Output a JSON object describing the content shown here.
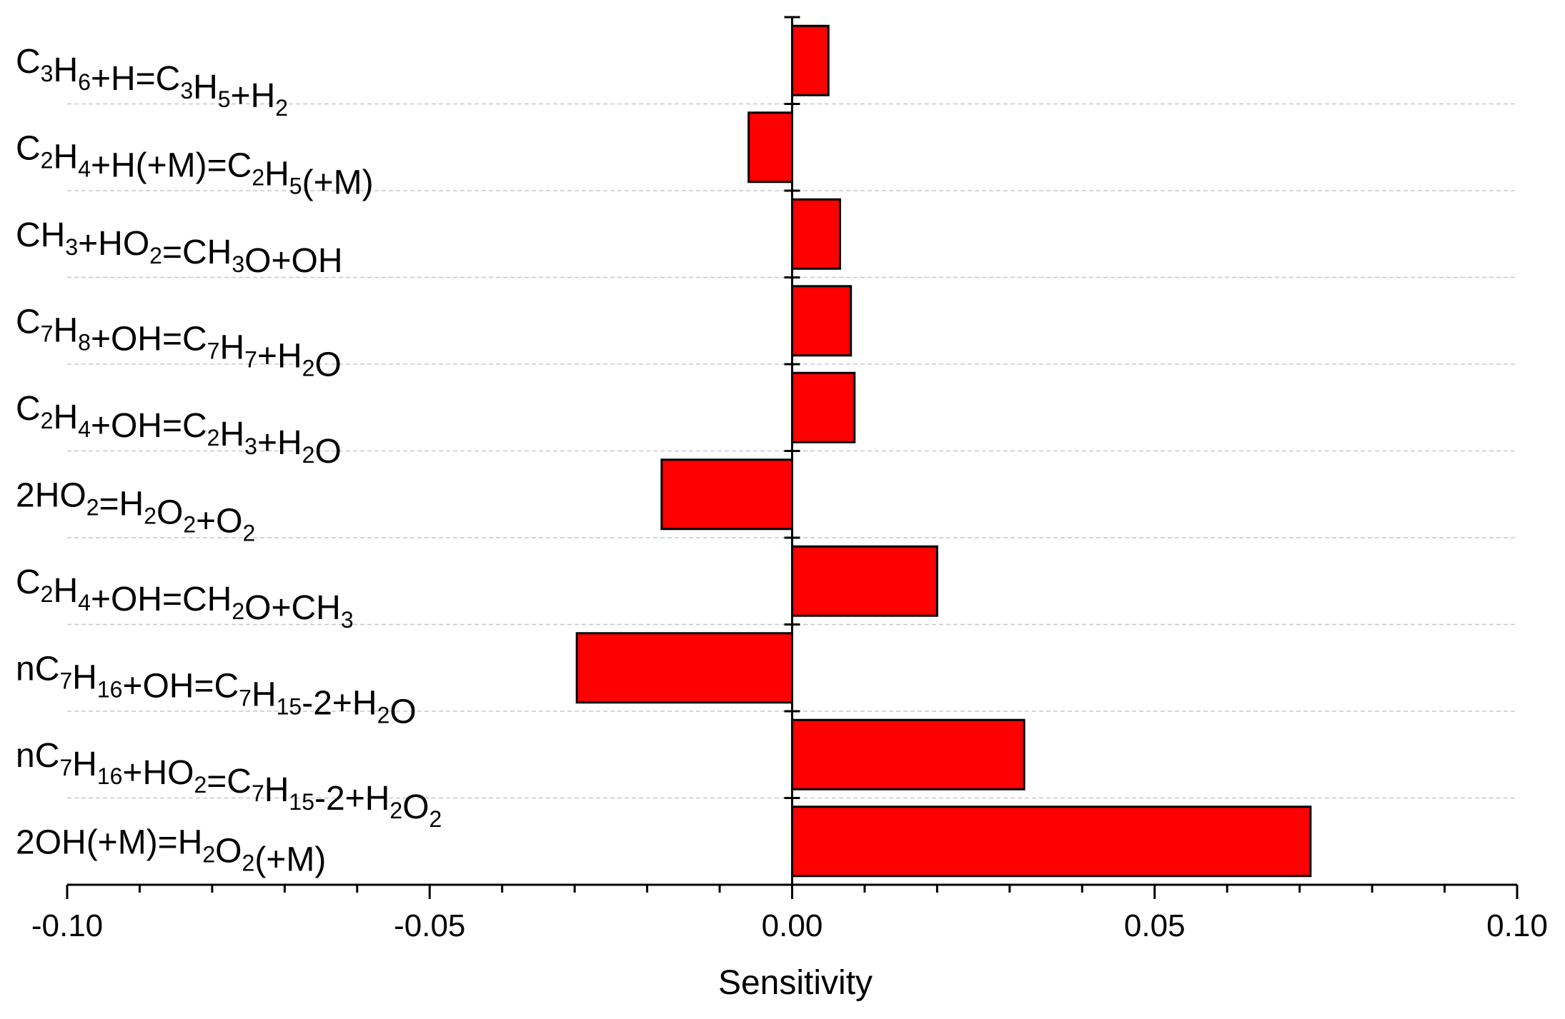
{
  "chart_data": {
    "type": "bar",
    "orientation": "horizontal",
    "xlabel": "Sensitivity",
    "ylabel": "",
    "xlim": [
      -0.1,
      0.1
    ],
    "xticks": [
      "-0.10",
      "-0.05",
      "0.00",
      "0.05",
      "0.10"
    ],
    "grid": "horizontal dashed",
    "bar_color": "#ff0000",
    "categories": [
      "C3H6+H=C3H5+H2",
      "C2H4+H(+M)=C2H5(+M)",
      "CH3+HO2=CH3O+OH",
      "C7H8+OH=C7H7+H2O",
      "C2H4+OH=C2H3+H2O",
      "2HO2=H2O2+O2",
      "C2H4+OH=CH2O+CH3",
      "nC7H16+OH=C7H15-2+H2O",
      "nC7H16+HO2=C7H15-2+H2O2",
      "2OH(+M)=H2O2(+M)"
    ],
    "values": [
      0.005,
      -0.006,
      0.0066,
      0.0081,
      0.0086,
      -0.018,
      0.02,
      -0.0297,
      0.032,
      0.0715
    ]
  }
}
